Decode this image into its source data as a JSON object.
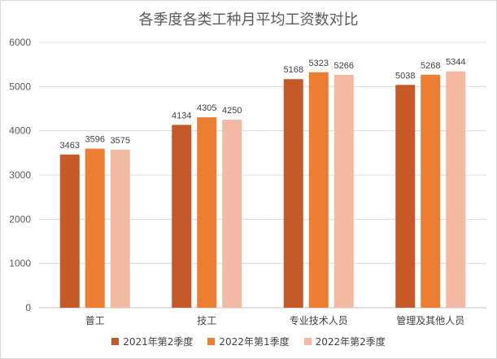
{
  "chart_data": {
    "type": "bar",
    "title": "各季度各类工种月平均工资数对比",
    "categories": [
      "普工",
      "技工",
      "专业技术人员",
      "管理及其他人员"
    ],
    "series": [
      {
        "name": "2021年第2季度",
        "color": "#c55a28",
        "values": [
          3463,
          4134,
          5168,
          5038
        ]
      },
      {
        "name": "2022年第1季度",
        "color": "#ed7d31",
        "values": [
          3596,
          4305,
          5323,
          5268
        ]
      },
      {
        "name": "2022年第2季度",
        "color": "#f4b9a2",
        "values": [
          3575,
          4250,
          5266,
          5344
        ]
      }
    ],
    "ylim": [
      0,
      6000
    ],
    "yticks": [
      0,
      1000,
      2000,
      3000,
      4000,
      5000,
      6000
    ],
    "grid": true,
    "legend_position": "bottom"
  }
}
